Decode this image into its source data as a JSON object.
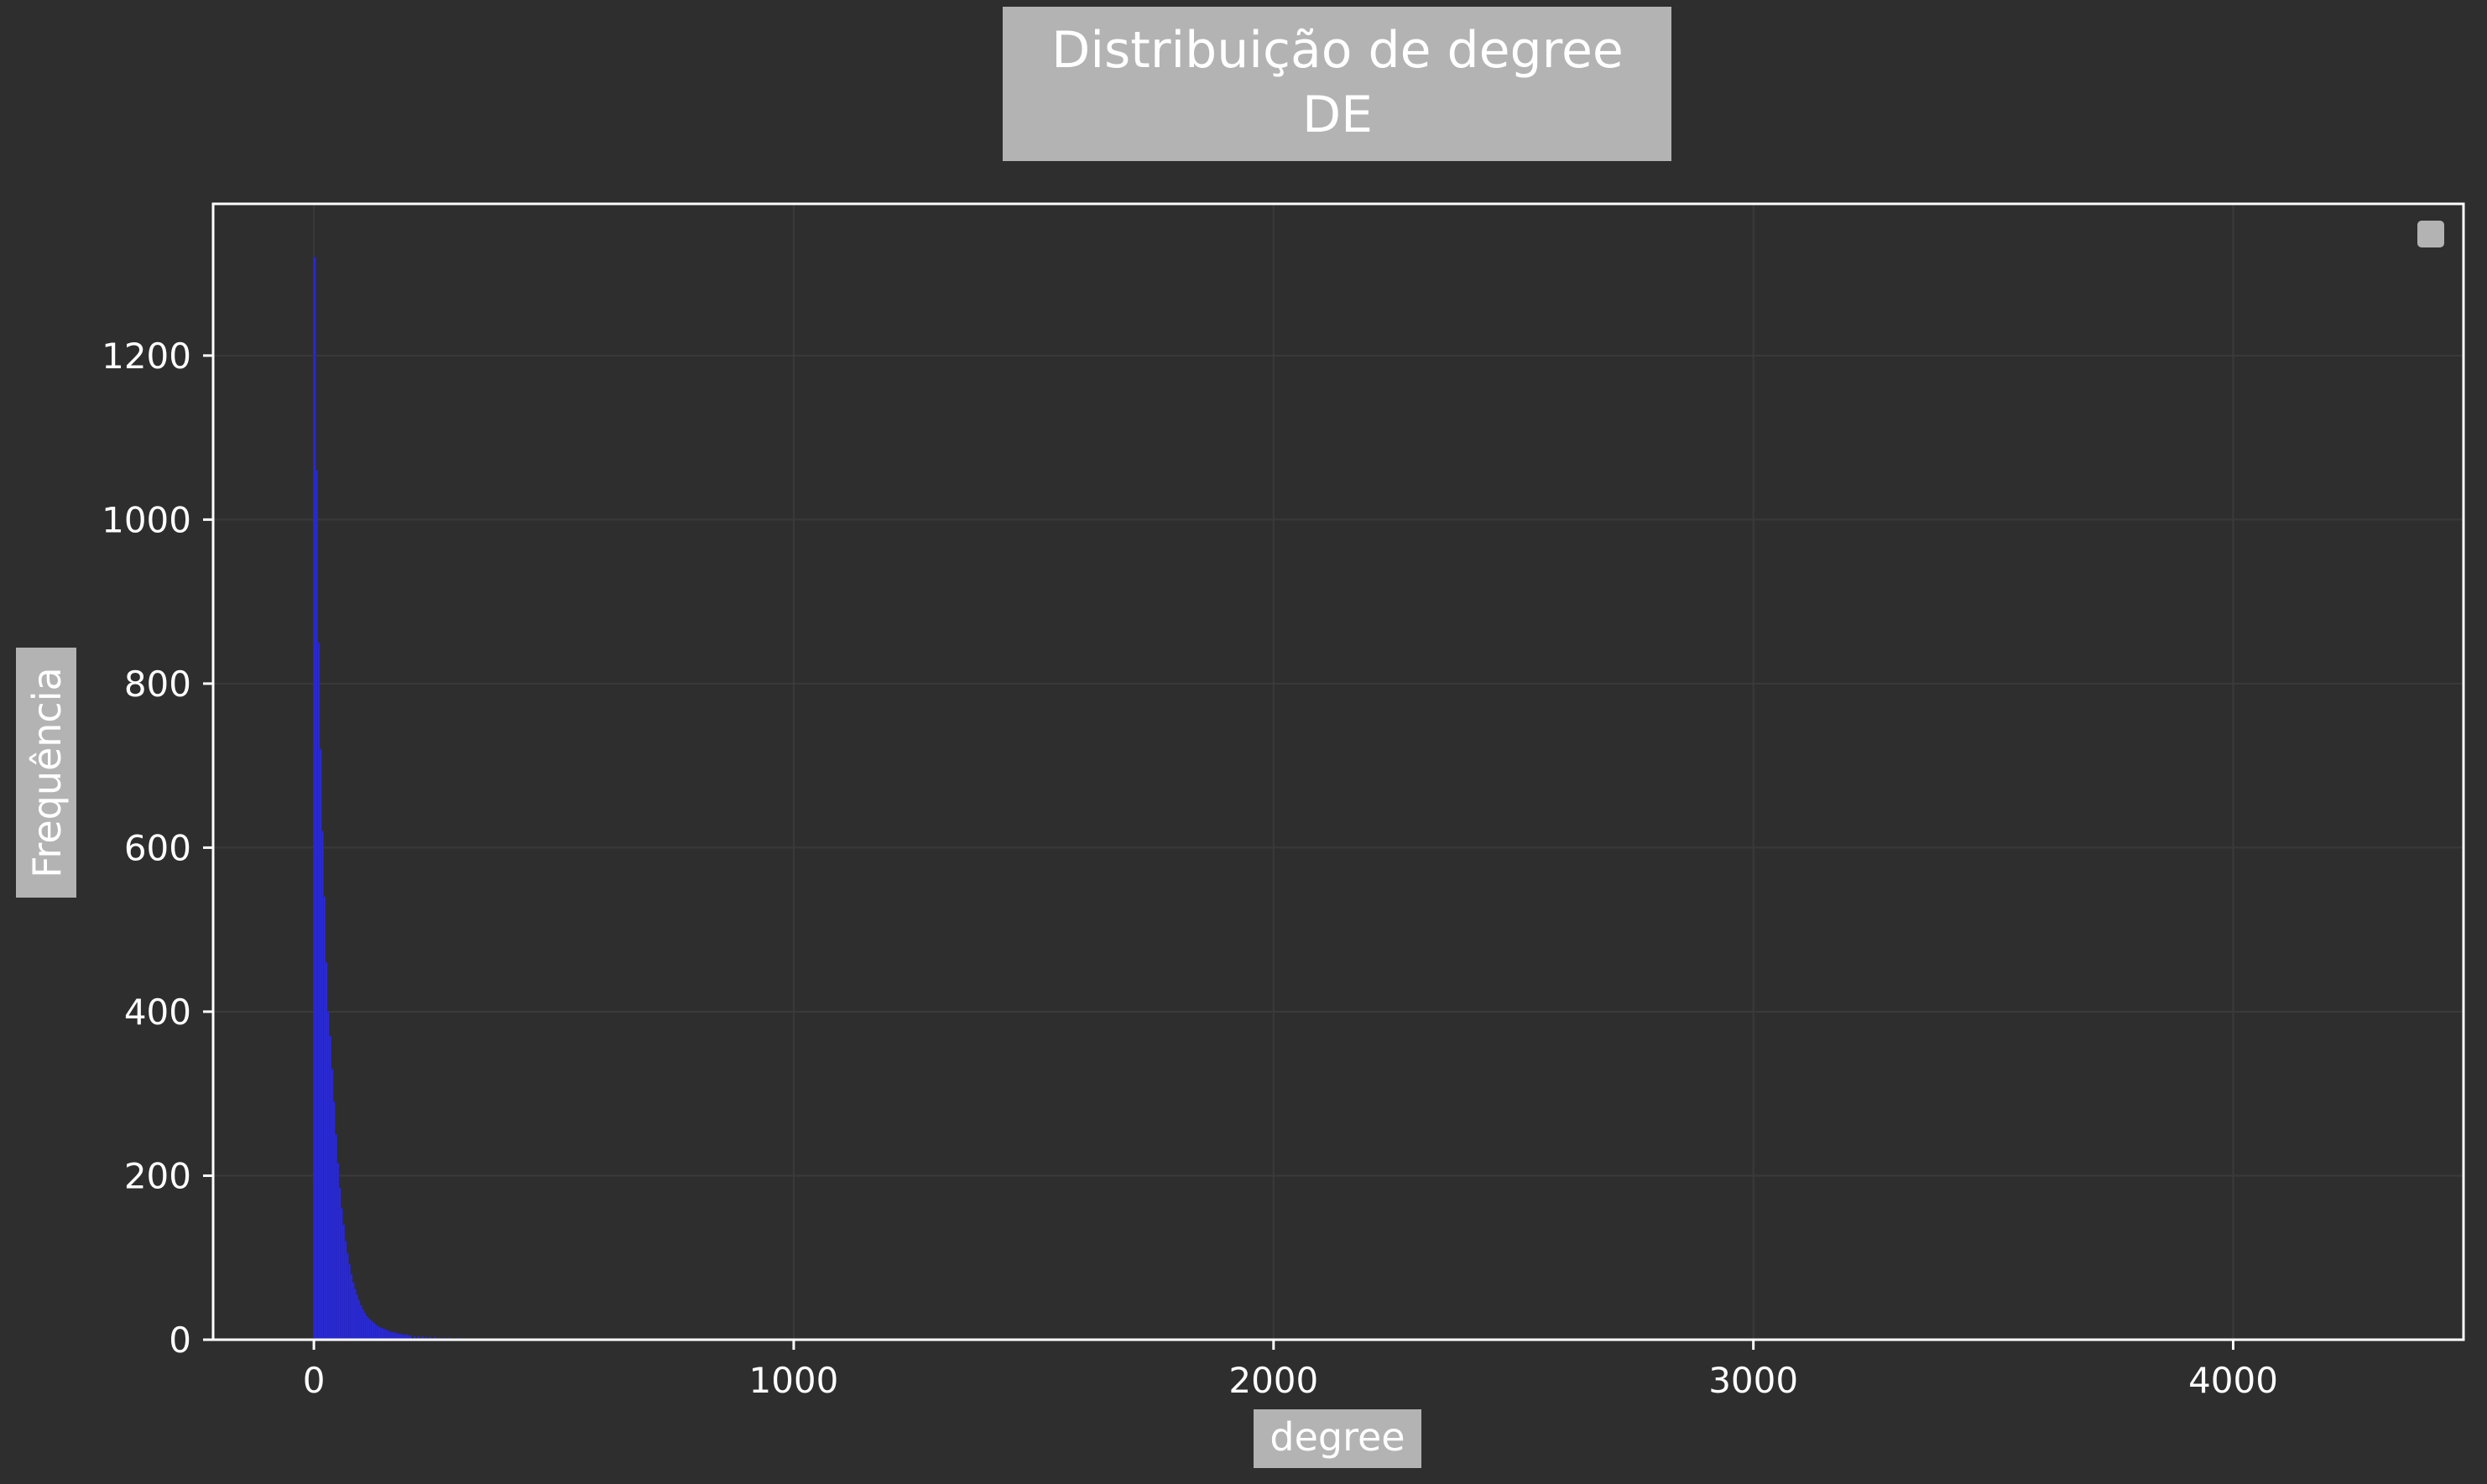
{
  "chart_data": {
    "type": "bar",
    "title": "Distribuição de degree",
    "subtitle": "DE",
    "xlabel": "degree",
    "ylabel": "Frequência",
    "xlim": [
      -210,
      4480
    ],
    "ylim": [
      0,
      1385
    ],
    "x_ticks": [
      0,
      1000,
      2000,
      3000,
      4000
    ],
    "x_tick_labels": [
      "0",
      "1000",
      "2000",
      "3000",
      "4000"
    ],
    "y_ticks": [
      0,
      200,
      400,
      600,
      800,
      1000,
      1200
    ],
    "y_tick_labels": [
      "0",
      "200",
      "400",
      "600",
      "800",
      "1000",
      "1200"
    ],
    "grid": true,
    "legend": "top-right",
    "bin_width": 4,
    "bins": [
      [
        0,
        1320
      ],
      [
        4,
        1060
      ],
      [
        8,
        850
      ],
      [
        12,
        720
      ],
      [
        16,
        620
      ],
      [
        20,
        540
      ],
      [
        24,
        460
      ],
      [
        28,
        400
      ],
      [
        32,
        370
      ],
      [
        36,
        330
      ],
      [
        40,
        290
      ],
      [
        44,
        250
      ],
      [
        48,
        215
      ],
      [
        52,
        185
      ],
      [
        56,
        160
      ],
      [
        60,
        140
      ],
      [
        64,
        120
      ],
      [
        68,
        105
      ],
      [
        72,
        92
      ],
      [
        76,
        80
      ],
      [
        80,
        70
      ],
      [
        84,
        62
      ],
      [
        88,
        55
      ],
      [
        92,
        48
      ],
      [
        96,
        42
      ],
      [
        100,
        37
      ],
      [
        104,
        33
      ],
      [
        108,
        29
      ],
      [
        112,
        26
      ],
      [
        116,
        24
      ],
      [
        120,
        22
      ],
      [
        124,
        20
      ],
      [
        128,
        18
      ],
      [
        132,
        16
      ],
      [
        136,
        15
      ],
      [
        140,
        14
      ],
      [
        144,
        13
      ],
      [
        148,
        12
      ],
      [
        152,
        11
      ],
      [
        156,
        10
      ],
      [
        160,
        9
      ],
      [
        164,
        9
      ],
      [
        168,
        8
      ],
      [
        172,
        8
      ],
      [
        176,
        7
      ],
      [
        180,
        7
      ],
      [
        184,
        6
      ],
      [
        188,
        6
      ],
      [
        192,
        6
      ],
      [
        196,
        5
      ],
      [
        200,
        5
      ],
      [
        208,
        4
      ],
      [
        216,
        4
      ],
      [
        224,
        4
      ],
      [
        232,
        3
      ],
      [
        240,
        3
      ],
      [
        250,
        3
      ],
      [
        260,
        2
      ],
      [
        270,
        2
      ],
      [
        280,
        2
      ],
      [
        300,
        2
      ],
      [
        320,
        1
      ],
      [
        340,
        1
      ],
      [
        360,
        1
      ],
      [
        380,
        1
      ],
      [
        400,
        1
      ]
    ],
    "bar_color": "#2b2bd6",
    "background": "#2e2e2e",
    "label_box_color": "#b3b3b3"
  }
}
